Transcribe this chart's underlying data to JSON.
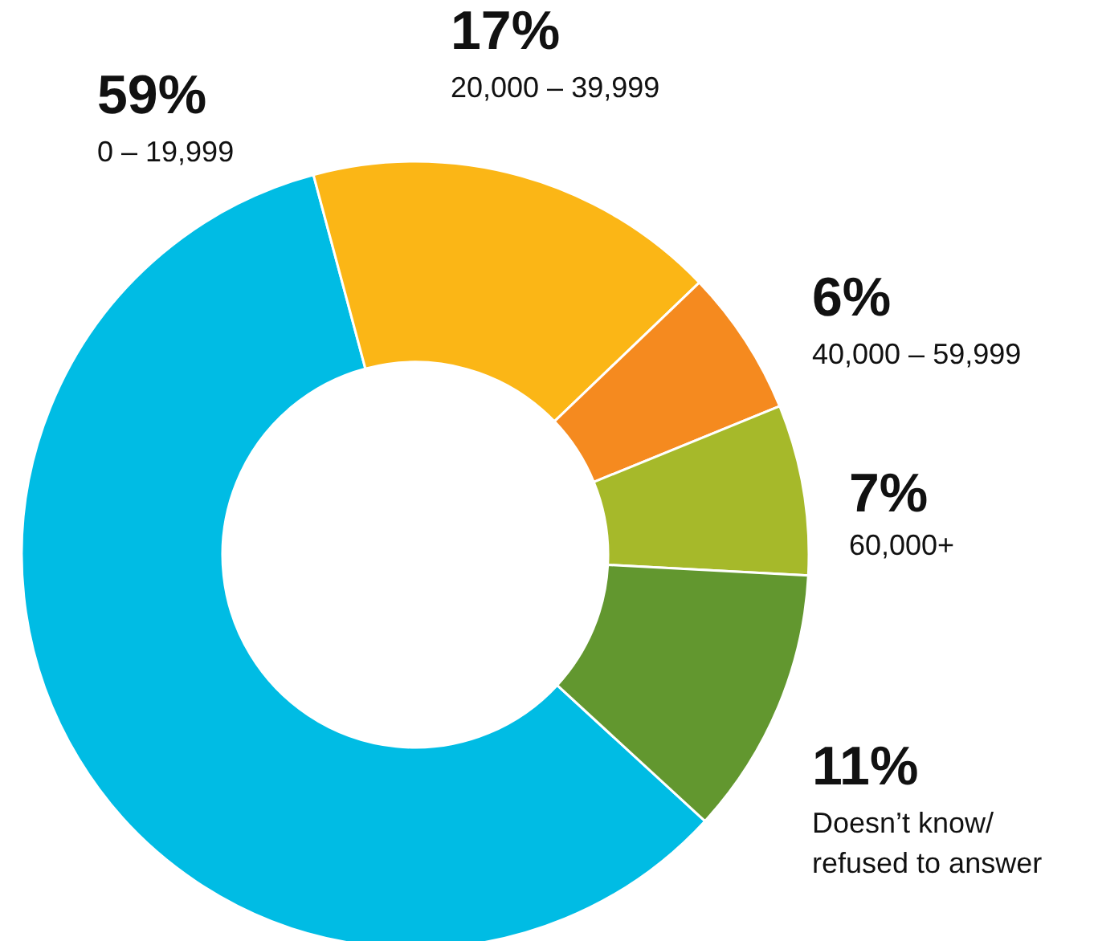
{
  "chart_data": {
    "type": "donut",
    "categories": [
      "0 – 19,999",
      "20,000 – 39,999",
      "40,000 – 59,999",
      "60,000+",
      "Doesn’t know/\nrefused to answer"
    ],
    "values": [
      59,
      17,
      6,
      7,
      11
    ],
    "value_labels": [
      "59%",
      "17%",
      "6%",
      "7%",
      "11%"
    ],
    "colors": [
      "#00bce4",
      "#fbb616",
      "#f58a1f",
      "#a6b92a",
      "#62972f"
    ]
  }
}
